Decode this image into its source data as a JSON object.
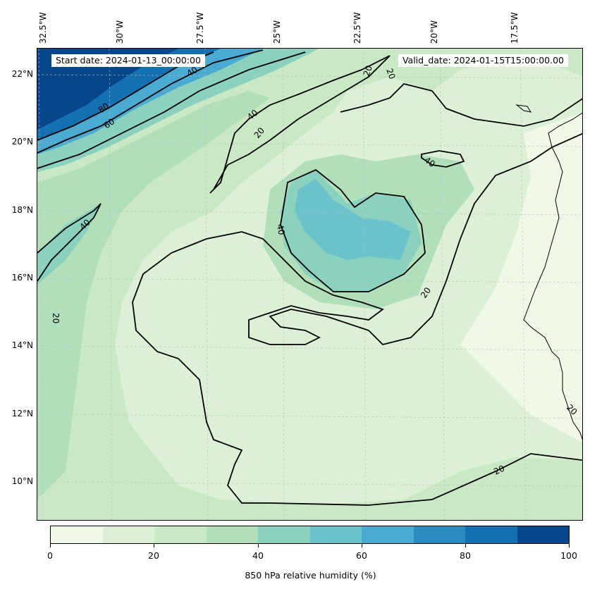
{
  "map": {
    "start_date": "Start date: 2024-01-13_00:00:00",
    "valid_date": "Valid_date: 2024-01-15T15:00:00.00",
    "longitude_labels": [
      "32.5°W",
      "30°W",
      "27.5°W",
      "25°W",
      "22.5°W",
      "20°W",
      "17.5°W"
    ],
    "latitude_labels": [
      "22°N",
      "20°N",
      "18°N",
      "16°N",
      "14°N",
      "12°N",
      "10°N"
    ],
    "contour_labels": [
      "80",
      "60",
      "40",
      "40",
      "20",
      "40",
      "20",
      "20",
      "40",
      "20",
      "20",
      "40",
      "20",
      "20"
    ],
    "colors": {
      "land_line": "#000000",
      "grid": "#bbbbbb"
    }
  },
  "colorbar": {
    "title": "850 hPa relative humidity (%)",
    "ticks": [
      "0",
      "20",
      "40",
      "60",
      "80",
      "100"
    ],
    "colors": [
      "#f0f9e8",
      "#dcf0d6",
      "#c9e8c4",
      "#b0dfb9",
      "#8ad1c0",
      "#6cc2ca",
      "#4aaad2",
      "#2b8bc0",
      "#1470b0",
      "#08468b"
    ]
  }
}
